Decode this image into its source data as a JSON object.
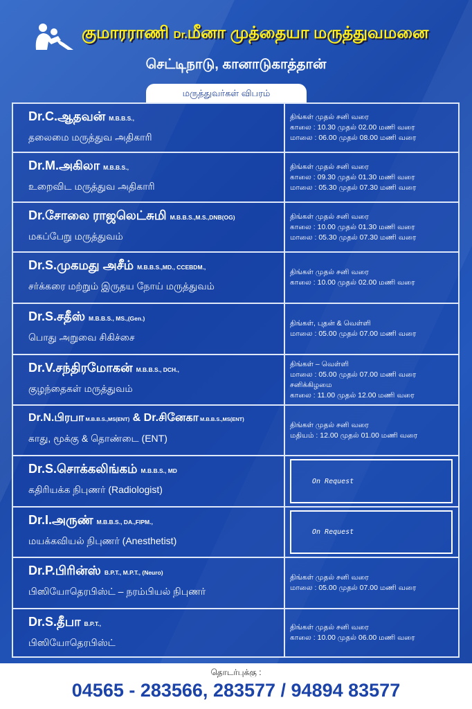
{
  "header": {
    "title_part1": "குமாரராணி",
    "title_dr": "Dr.",
    "title_part2": "மீனா முத்தையா மருத்துவமனை",
    "subtitle": "செட்டிநாடு, கானாடுகாத்தான்",
    "tab": "மருத்துவர்கள் விபரம்",
    "logo_icon": "mother-child-logo"
  },
  "doctors": [
    {
      "name": "Dr.C.ஆதவன்",
      "qual": "M.B.B.S.,",
      "spec": "தலைமை மருத்துவ அதிகாரி",
      "schedule": [
        "திங்கள் முதல் சனி வரை",
        "காலை : 10.30 முதல் 02.00 மணி வரை",
        "மாலை : 06.00 முதல் 08.00 மணி வரை"
      ]
    },
    {
      "name": "Dr.M.அகிலா",
      "qual": "M.B.B.S.,",
      "spec": "உறைவிட மருத்துவ அதிகாரி",
      "schedule": [
        "திங்கள் முதல் சனி வரை",
        "காலை : 09.30 முதல் 01.30 மணி வரை",
        "மாலை : 05.30 முதல் 07.30 மணி வரை"
      ]
    },
    {
      "name": "Dr.சோலை ராஜலெட்சுமி",
      "qual": "M.B.B.S.,M.S.,DNB(OG)",
      "spec": "மகப்பேறு மருத்துவம்",
      "schedule": [
        "திங்கள் முதல் சனி வரை",
        "காலை : 10.00 முதல் 01.30 மணி வரை",
        "மாலை : 05.30 முதல் 07.30 மணி வரை"
      ]
    },
    {
      "name": "Dr.S.முகமது அசீம்",
      "qual": "M.B.B.S.,MD., CCEBDM.,",
      "spec": "சர்க்கரை மற்றும் இருதய நோய் மருத்துவம்",
      "schedule": [
        "திங்கள் முதல் சனி வரை",
        "காலை : 10.00 முதல் 02.00 மணி வரை"
      ]
    },
    {
      "name": "Dr.S.சதீஸ்",
      "qual": "M.B.B.S., MS.,(Gen.)",
      "spec": "பொது அறுவை சிகிச்சை",
      "schedule": [
        "திங்கள், புதன் & வெள்ளி",
        "மாலை : 05.00 முதல் 07.00 மணி வரை"
      ]
    },
    {
      "name": "Dr.V.சந்திரமோகன்",
      "qual": "M.B.B.S., DCH.,",
      "spec": "குழந்தைகள் மருத்துவம்",
      "schedule": [
        "திங்கள் – வெள்ளி",
        "மாலை : 05.00 முதல் 07.00 மணி வரை",
        "சனிக்கிழமை",
        "காலை : 11.00 முதல் 12.00 மணி வரை"
      ]
    },
    {
      "name": "Dr.N.பிரபா",
      "qual": "M.B.B.S.,MS(ENT)",
      "name2": "& Dr.சினேகா",
      "qual2": "M.B.B.S.,MS(ENT)",
      "spec": "காது, மூக்கு & தொண்டை (ENT)",
      "schedule": [
        "திங்கள் முதல் சனி வரை",
        "மதியம் : 12.00 முதல் 01.00 மணி வரை"
      ]
    },
    {
      "name": "Dr.S.சொக்கலிங்கம்",
      "qual": "M.B.B.S., MD",
      "spec": "கதிரியக்க நிபுணர் (Radiologist)",
      "on_request": "On Request"
    },
    {
      "name": "Dr.I.அருண்",
      "qual": "M.B.B.S., DA.,FIPM.,",
      "spec": "மயக்கவியல் நிபுணர் (Anesthetist)",
      "on_request": "On Request"
    },
    {
      "name": "Dr.P.பிரின்ஸ்",
      "qual": "B.P.T., M.P.T., (Neuro)",
      "spec": "பிஸியோதெரபிஸ்ட் – நரம்பியல் நிபுணர்",
      "schedule": [
        "திங்கள் முதல் சனி வரை",
        "மாலை : 05.00 முதல் 07.00 மணி வரை"
      ]
    },
    {
      "name": "Dr.S.தீபா",
      "qual": "B.P.T.,",
      "spec": "பிஸியோதெரபிஸ்ட்",
      "schedule": [
        "திங்கள் முதல் சனி வரை",
        "காலை : 10.00 முதல் 06.00 மணி வரை"
      ]
    }
  ],
  "footer": {
    "contact_label": "தொடர்புக்கு :",
    "phone": "04565 - 283566, 283577 / 94894 83577"
  },
  "colors": {
    "background": "#1d4fb4",
    "title": "#ffef1a",
    "phone": "#1b43a8"
  }
}
